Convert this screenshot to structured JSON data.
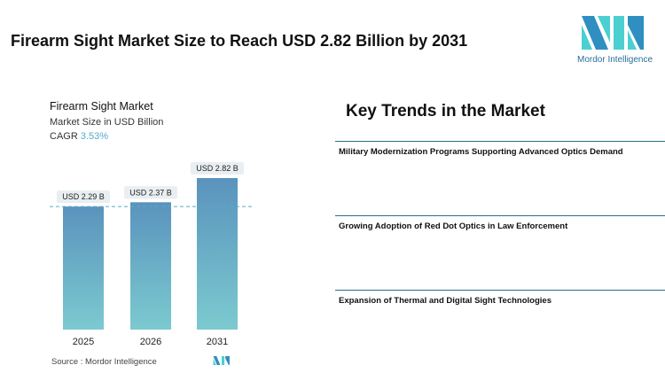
{
  "title": "Firearm Sight Market Size to Reach USD 2.82 Billion by 2031",
  "logo": {
    "text": "Mordor Intelligence",
    "colors": [
      "#2f8fc0",
      "#4ccfd0"
    ]
  },
  "chart_data": {
    "type": "bar",
    "title": "Firearm Sight Market",
    "subtitle": "Market Size in USD Billion",
    "cagr_label": "CAGR",
    "cagr_value": "3.53%",
    "categories": [
      "2025",
      "2026",
      "2031"
    ],
    "values": [
      2.29,
      2.37,
      2.82
    ],
    "data_labels": [
      "USD 2.29 B",
      "USD 2.37 B",
      "USD 2.82 B"
    ],
    "ylim": [
      0,
      2.82
    ],
    "reference_line": 2.29,
    "bar_gradient": [
      "#5a93bd",
      "#7ccad0"
    ]
  },
  "trends": {
    "heading": "Key Trends in the Market",
    "items": [
      "Military Modernization Programs Supporting Advanced Optics Demand",
      "Growing Adoption of Red Dot Optics in Law Enforcement",
      "Expansion of Thermal and Digital Sight Technologies"
    ]
  },
  "source": "Source :  Mordor Intelligence"
}
